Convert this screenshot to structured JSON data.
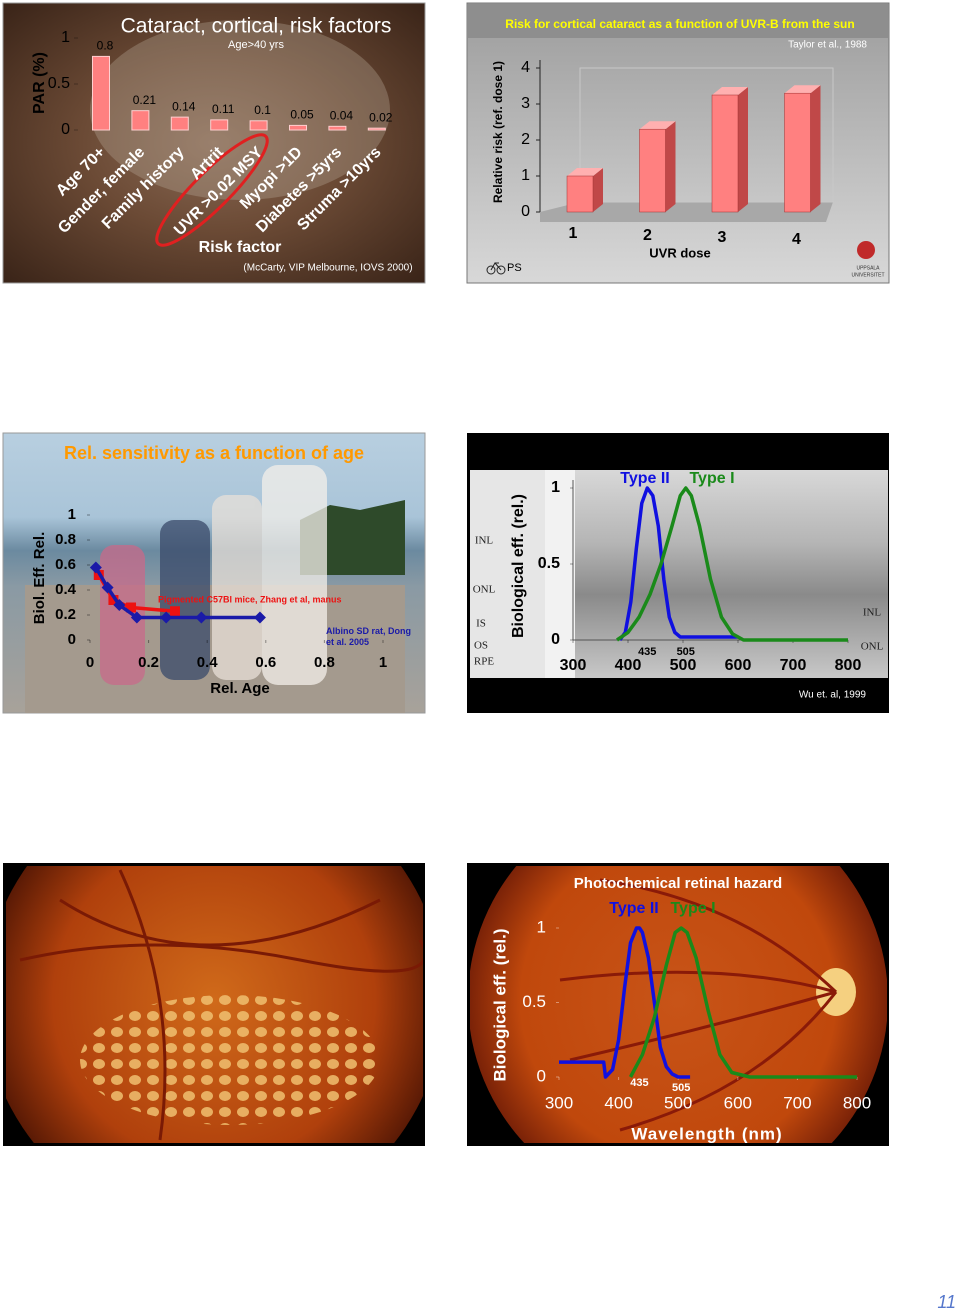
{
  "page_number": "11",
  "chart_data": [
    {
      "type": "bar",
      "title": "Cataract, cortical,  risk factors",
      "subtitle": "Age>40 yrs",
      "y_label": "PAR (%)",
      "x_label": "Risk factor",
      "source": "(McCarty, VIP Melbourne, IOVS 2000)",
      "categories": [
        "Age 70+",
        "Gender, female",
        "Family history",
        "Artrit",
        "UVR >0.02 MSY",
        "Myopi >1D",
        "Diabetes >5yrs",
        "Struma >10yrs"
      ],
      "values": [
        0.8,
        0.21,
        0.14,
        0.11,
        0.1,
        0.05,
        0.04,
        0.02
      ],
      "color": "#ff8080",
      "ylim": [
        0,
        1
      ],
      "yticks": [
        0,
        0.5,
        1
      ]
    },
    {
      "type": "bar3d",
      "title": "Risk for cortical cataract as a function of UVR-B from the sun",
      "source": "Taylor et al., 1988",
      "y_label": "Relative risk (ref. dose 1)",
      "x_label": "UVR dose",
      "footer": "PS",
      "logo_lines": [
        "UPPSALA",
        "UNIVERSITET"
      ],
      "categories": [
        "1",
        "2",
        "3",
        "4"
      ],
      "values": [
        1,
        2.3,
        3.25,
        3.3
      ],
      "color": "#ff8080",
      "ylim": [
        0,
        4
      ],
      "yticks": [
        0,
        1,
        2,
        3,
        4
      ]
    },
    {
      "type": "line",
      "title": "Rel. sensitivity as a function of age",
      "y_label": "Biol. Eff. Rel.",
      "x_label": "Rel. Age",
      "xlim": [
        0,
        1
      ],
      "xticks": [
        0,
        0.2,
        0.4,
        0.6,
        0.8,
        1
      ],
      "ylim": [
        0,
        1
      ],
      "yticks": [
        0,
        0.2,
        0.4,
        0.6,
        0.8,
        1
      ],
      "series": [
        {
          "name": "Pigmented C57Bl mice, Zhang et al, manus",
          "color": "#ee1111",
          "marker": "square",
          "x": [
            0.03,
            0.08,
            0.14,
            0.29
          ],
          "values": [
            0.52,
            0.32,
            0.26,
            0.23
          ]
        },
        {
          "name": "Albino SD rat, Dong et al. 2005",
          "color": "#1a1aa8",
          "marker": "diamond",
          "x": [
            0.02,
            0.06,
            0.1,
            0.16,
            0.26,
            0.38,
            0.58
          ],
          "values": [
            0.58,
            0.42,
            0.28,
            0.18,
            0.18,
            0.18,
            0.18
          ]
        }
      ]
    },
    {
      "type": "line",
      "y_label": "Biological eff. (rel.)",
      "source": "Wu et. al, 1999",
      "image_labels": [
        "INL",
        "ONL",
        "IS",
        "OS",
        "RPE",
        "INL",
        "ONL"
      ],
      "xlim": [
        300,
        800
      ],
      "xticks": [
        300,
        400,
        500,
        600,
        700,
        800
      ],
      "ylim": [
        0,
        1
      ],
      "yticks": [
        0,
        0.5,
        1
      ],
      "peak_markers": [
        435,
        505
      ],
      "series": [
        {
          "name": "Type II",
          "color": "#1010e0",
          "x": [
            385,
            395,
            405,
            415,
            425,
            435,
            445,
            455,
            465,
            475,
            485,
            495,
            510,
            600
          ],
          "values": [
            0,
            0.05,
            0.25,
            0.6,
            0.9,
            1,
            0.95,
            0.75,
            0.4,
            0.15,
            0.05,
            0.02,
            0.02,
            0.02
          ]
        },
        {
          "name": "Type I",
          "color": "#1a8a1a",
          "x": [
            380,
            400,
            420,
            440,
            460,
            480,
            495,
            505,
            515,
            530,
            550,
            570,
            590,
            610,
            800
          ],
          "values": [
            0,
            0.05,
            0.15,
            0.3,
            0.5,
            0.75,
            0.95,
            1,
            0.95,
            0.75,
            0.4,
            0.15,
            0.04,
            0,
            0
          ]
        }
      ]
    },
    {
      "type": "line",
      "title": "Photochemical retinal hazard",
      "y_label": "Biological eff. (rel.)",
      "x_label": "Wavelength (nm)",
      "xlim": [
        300,
        800
      ],
      "xticks": [
        300,
        400,
        500,
        600,
        700,
        800
      ],
      "ylim": [
        0,
        1
      ],
      "yticks": [
        0,
        0.5,
        1
      ],
      "peak_markers": [
        435,
        505
      ],
      "series": [
        {
          "name": "Type II",
          "color": "#1010e0",
          "x": [
            300,
            375,
            378,
            390,
            400,
            410,
            420,
            430,
            435,
            440,
            450,
            460,
            470,
            480,
            490,
            500,
            520
          ],
          "values": [
            0.1,
            0.1,
            0,
            0.05,
            0.25,
            0.6,
            0.9,
            1,
            1,
            0.97,
            0.8,
            0.5,
            0.2,
            0.07,
            0.02,
            0,
            0
          ]
        },
        {
          "name": "Type I",
          "color": "#1a8a1a",
          "x": [
            420,
            440,
            460,
            480,
            495,
            505,
            515,
            530,
            550,
            570,
            590,
            620,
            800
          ],
          "values": [
            0,
            0.15,
            0.4,
            0.75,
            0.97,
            1,
            0.97,
            0.8,
            0.45,
            0.15,
            0.03,
            0,
            0
          ]
        }
      ]
    }
  ]
}
